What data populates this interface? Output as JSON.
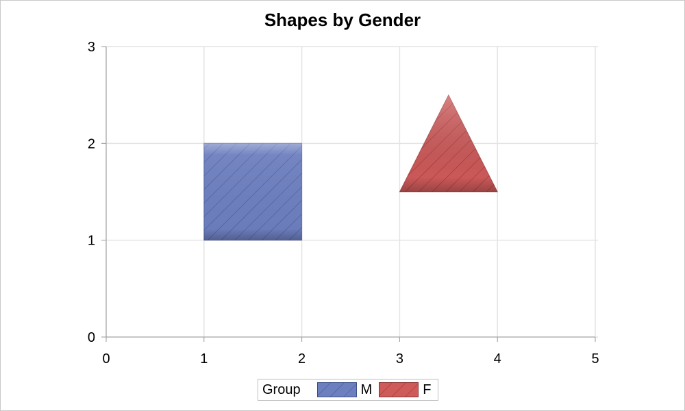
{
  "chart_data": {
    "type": "polygon",
    "title": "Shapes by Gender",
    "xlabel": "",
    "ylabel": "",
    "xlim": [
      0,
      5
    ],
    "ylim": [
      0,
      3
    ],
    "x_ticks": [
      "0",
      "1",
      "2",
      "3",
      "4",
      "5"
    ],
    "y_ticks": [
      "0",
      "1",
      "2",
      "3"
    ],
    "grid": true,
    "legend": {
      "title": "Group",
      "placement": "bottom",
      "entries": [
        {
          "label": "M",
          "color": "#6d7fbf"
        },
        {
          "label": "F",
          "color": "#cf5a5a"
        }
      ]
    },
    "series": [
      {
        "group": "M",
        "shape": "square",
        "color": "#6d7fbf",
        "fill_pattern": "diagonal-hatch",
        "points": [
          [
            1,
            1
          ],
          [
            2,
            1
          ],
          [
            2,
            2
          ],
          [
            1,
            2
          ]
        ]
      },
      {
        "group": "F",
        "shape": "triangle",
        "color": "#cf5a5a",
        "fill_pattern": "diagonal-hatch",
        "points": [
          [
            3,
            1.5
          ],
          [
            4,
            1.5
          ],
          [
            3.5,
            2.5
          ]
        ]
      }
    ]
  }
}
